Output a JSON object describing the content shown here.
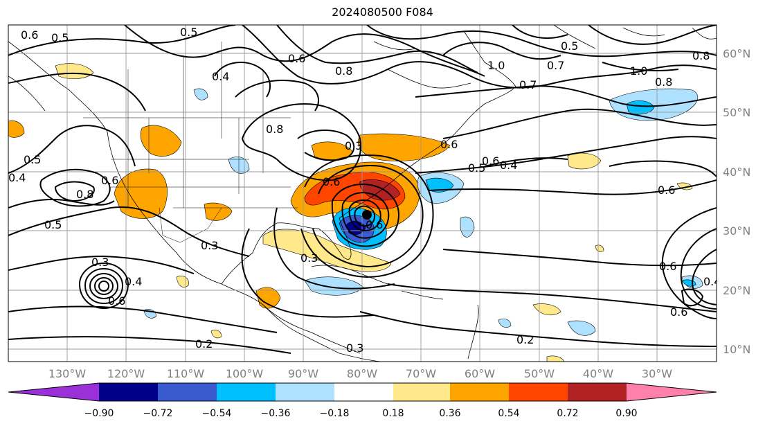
{
  "title": "2024080500 F084",
  "map": {
    "lon_ticks": [
      "130°W",
      "120°W",
      "110°W",
      "100°W",
      "90°W",
      "80°W",
      "70°W",
      "60°W",
      "50°W",
      "40°W",
      "30°W"
    ],
    "lat_ticks": [
      "60°N",
      "50°N",
      "40°N",
      "30°N",
      "20°N",
      "10°N"
    ],
    "contour_labels": [
      "0.6",
      "0.5",
      "0.5",
      "0.4",
      "0.6",
      "0.8",
      "1.0",
      "0.7",
      "0.5",
      "0.8",
      "0.7",
      "0.8",
      "1.0",
      "0.8",
      "0.5",
      "0.4",
      "0.6",
      "0.8",
      "0.6",
      "0.5",
      "0.3",
      "0.3",
      "0.6",
      "0.6",
      "0.5",
      "0.4",
      "0.6",
      "0.6",
      "0.4",
      "0.3",
      "0.3",
      "0.6",
      "0.6",
      "0.2",
      "0.2",
      "0.3",
      "0.6",
      "0.4"
    ]
  },
  "colorbar": {
    "ticks": [
      "−0.90",
      "−0.72",
      "−0.54",
      "−0.36",
      "−0.18",
      "0.18",
      "0.36",
      "0.54",
      "0.72",
      "0.90"
    ],
    "colors": [
      "#9b30d9",
      "#00008b",
      "#3a5bd0",
      "#00bfff",
      "#ade1ff",
      "#ffffff",
      "#ffe98a",
      "#ffa500",
      "#ff4500",
      "#b22222",
      "#ff80ab"
    ]
  }
}
